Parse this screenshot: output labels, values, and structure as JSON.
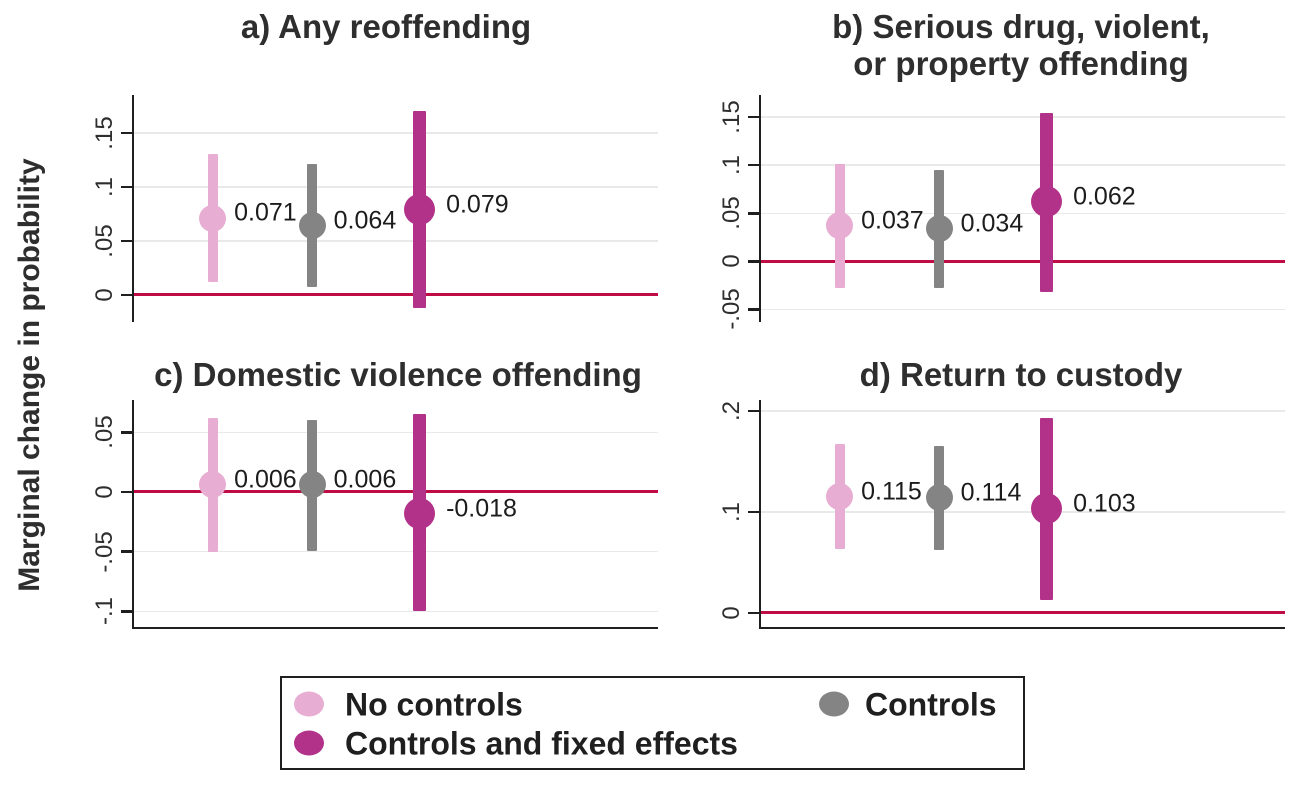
{
  "figure": {
    "y_axis_label": "Marginal change in probability"
  },
  "colors": {
    "no_controls": "#e8add2",
    "controls": "#848484",
    "controls_fe": "#b23189",
    "zero_line": "#c00c45",
    "gridline": "#e9e9e9",
    "axis": "#1f1f1f"
  },
  "legend": {
    "items": [
      {
        "label": "No controls",
        "color_key": "no_controls"
      },
      {
        "label": "Controls",
        "color_key": "controls"
      },
      {
        "label": "Controls and fixed effects",
        "color_key": "controls_fe"
      }
    ]
  },
  "chart_data": [
    {
      "type": "scatter",
      "panel_id": "a",
      "title": "a) Any reoffending",
      "title_lines": [
        "a) Any reoffending"
      ],
      "ylabel": "Marginal change in probability",
      "ylim": [
        -0.025,
        0.185
      ],
      "grid": true,
      "zero_line": 0,
      "yticks": [
        {
          "v": 0.15,
          "label": ".15"
        },
        {
          "v": 0.1,
          "label": ".1"
        },
        {
          "v": 0.05,
          "label": ".05"
        },
        {
          "v": 0.0,
          "label": "0"
        }
      ],
      "points": [
        {
          "series": "No controls",
          "estimate": 0.071,
          "label": "0.071",
          "ci_low": 0.012,
          "ci_high": 0.13
        },
        {
          "series": "Controls",
          "estimate": 0.064,
          "label": "0.064",
          "ci_low": 0.007,
          "ci_high": 0.121
        },
        {
          "series": "Controls and fixed effects",
          "estimate": 0.079,
          "label": "0.079",
          "ci_low": -0.012,
          "ci_high": 0.17
        }
      ]
    },
    {
      "type": "scatter",
      "panel_id": "b",
      "title": "b) Serious drug, violent, or property offending",
      "title_lines": [
        "b) Serious drug, violent,",
        "or property offending"
      ],
      "ylabel": "Marginal change in probability",
      "ylim": [
        -0.063,
        0.173
      ],
      "grid": true,
      "zero_line": 0,
      "yticks": [
        {
          "v": 0.15,
          "label": ".15"
        },
        {
          "v": 0.1,
          "label": ".1"
        },
        {
          "v": 0.05,
          "label": ".05"
        },
        {
          "v": 0.0,
          "label": "0"
        },
        {
          "v": -0.05,
          "label": "-.05"
        }
      ],
      "points": [
        {
          "series": "No controls",
          "estimate": 0.037,
          "label": "0.037",
          "ci_low": -0.028,
          "ci_high": 0.101
        },
        {
          "series": "Controls",
          "estimate": 0.034,
          "label": "0.034",
          "ci_low": -0.028,
          "ci_high": 0.095
        },
        {
          "series": "Controls and fixed effects",
          "estimate": 0.062,
          "label": "0.062",
          "ci_low": -0.032,
          "ci_high": 0.154
        }
      ]
    },
    {
      "type": "scatter",
      "panel_id": "c",
      "title": "c) Domestic violence offending",
      "title_lines": [
        "c) Domestic violence offending"
      ],
      "ylabel": "Marginal change in probability",
      "ylim": [
        -0.113,
        0.077
      ],
      "grid": true,
      "zero_line": 0,
      "yticks": [
        {
          "v": 0.05,
          "label": ".05"
        },
        {
          "v": 0.0,
          "label": "0"
        },
        {
          "v": -0.05,
          "label": "-.05"
        },
        {
          "v": -0.1,
          "label": "-.1"
        }
      ],
      "points": [
        {
          "series": "No controls",
          "estimate": 0.006,
          "label": "0.006",
          "ci_low": -0.05,
          "ci_high": 0.062
        },
        {
          "series": "Controls",
          "estimate": 0.006,
          "label": "0.006",
          "ci_low": -0.049,
          "ci_high": 0.06
        },
        {
          "series": "Controls and fixed effects",
          "estimate": -0.018,
          "label": "-0.018",
          "ci_low": -0.1,
          "ci_high": 0.065
        }
      ]
    },
    {
      "type": "scatter",
      "panel_id": "d",
      "title": "d) Return to custody",
      "title_lines": [
        "d) Return to custody"
      ],
      "ylabel": "Marginal change in probability",
      "ylim": [
        -0.014,
        0.211
      ],
      "grid": true,
      "zero_line": 0,
      "yticks": [
        {
          "v": 0.2,
          "label": ".2"
        },
        {
          "v": 0.1,
          "label": ".1"
        },
        {
          "v": 0.0,
          "label": "0"
        }
      ],
      "points": [
        {
          "series": "No controls",
          "estimate": 0.115,
          "label": "0.115",
          "ci_low": 0.063,
          "ci_high": 0.167
        },
        {
          "series": "Controls",
          "estimate": 0.114,
          "label": "0.114",
          "ci_low": 0.062,
          "ci_high": 0.165
        },
        {
          "series": "Controls and fixed effects",
          "estimate": 0.103,
          "label": "0.103",
          "ci_low": 0.013,
          "ci_high": 0.193
        }
      ]
    }
  ]
}
